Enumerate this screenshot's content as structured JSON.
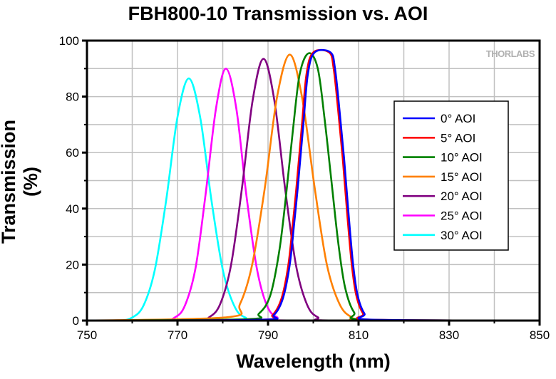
{
  "chart_data": {
    "type": "line",
    "title": "FBH800-10 Transmission vs. AOI",
    "xlabel": "Wavelength (nm)",
    "ylabel": "Transmission (%)",
    "xlim": [
      750,
      850
    ],
    "ylim": [
      0,
      100
    ],
    "xticks": [
      750,
      770,
      790,
      810,
      830,
      850
    ],
    "yticks": [
      0,
      20,
      40,
      60,
      80,
      100
    ],
    "grid": true,
    "legend_position": "right",
    "logo": "THORLABS",
    "series": [
      {
        "name": "0° AOI",
        "color": "#0000ff",
        "x": [
          750,
          788.3,
          791.3,
          793.3,
          794.8,
          795.8,
          796.6,
          797.8,
          798.8,
          800.3,
          803.8,
          804.8,
          805.8,
          806.8,
          807.8,
          808.8,
          809.8,
          811.3,
          813.3,
          850
        ],
        "y": [
          0,
          0.3,
          2,
          8,
          20,
          35,
          48,
          70,
          88,
          95.8,
          95.8,
          90,
          75,
          58,
          38,
          20,
          9,
          2.5,
          0.3,
          0
        ]
      },
      {
        "name": "5° AOI",
        "color": "#ff0000",
        "x": [
          750,
          788,
          791,
          793,
          794.5,
          795.5,
          796.3,
          797.5,
          798.5,
          800,
          803.5,
          804.5,
          805.5,
          806.5,
          807.5,
          808.5,
          809.5,
          811,
          813,
          850
        ],
        "y": [
          0,
          0.3,
          2,
          8,
          20,
          35,
          48,
          70,
          88,
          95.8,
          95.8,
          90,
          75,
          58,
          38,
          20,
          9,
          2.5,
          0.3,
          0
        ]
      },
      {
        "name": "10° AOI",
        "color": "#008000",
        "x": [
          750,
          785,
          788,
          790.5,
          792.5,
          794,
          795.5,
          797,
          799,
          801,
          802.5,
          804,
          805.5,
          807,
          809,
          812,
          850
        ],
        "y": [
          0,
          0.5,
          2.5,
          9,
          25,
          45,
          68,
          88,
          95.5,
          90,
          72,
          50,
          28,
          12,
          3,
          0.3,
          0
        ]
      },
      {
        "name": "15° AOI",
        "color": "#ff8000",
        "x": [
          750,
          781,
          783.8,
          786.5,
          789.3,
          792,
          794.8,
          797.5,
          800.3,
          803,
          805.8,
          808.5,
          812,
          850
        ],
        "y": [
          0,
          1.2,
          5.9,
          20,
          47.5,
          79.9,
          95,
          79.9,
          47.5,
          20,
          5.9,
          1.2,
          0,
          0
        ]
      },
      {
        "name": "20° AOI",
        "color": "#800080",
        "x": [
          750,
          774,
          777,
          779.4,
          781.8,
          784.2,
          786.6,
          789,
          791.4,
          793.8,
          796.2,
          798.6,
          801,
          805,
          850
        ],
        "y": [
          0,
          0,
          1.2,
          5.8,
          19.6,
          46.8,
          78.6,
          93.5,
          78.6,
          46.8,
          19.6,
          5.8,
          1.2,
          0,
          0
        ]
      },
      {
        "name": "25° AOI",
        "color": "#ff00ff",
        "x": [
          750,
          766,
          769.5,
          771.7,
          774,
          776.2,
          778.5,
          780.7,
          783,
          785.2,
          787.5,
          789.7,
          792,
          796,
          850
        ],
        "y": [
          0,
          0,
          1.2,
          5.6,
          18.9,
          45,
          75.7,
          90,
          75.7,
          45,
          18.9,
          5.6,
          1.2,
          0,
          0
        ]
      },
      {
        "name": "30° AOI",
        "color": "#00ffff",
        "x": [
          750,
          757,
          760,
          762.5,
          765,
          767.5,
          770,
          772.5,
          775,
          777.5,
          780,
          782.5,
          785,
          790,
          850
        ],
        "y": [
          0,
          0,
          1.1,
          5.4,
          18.2,
          43,
          72.7,
          86.5,
          72.7,
          43,
          18.2,
          5.4,
          1.1,
          0,
          0
        ]
      }
    ]
  }
}
